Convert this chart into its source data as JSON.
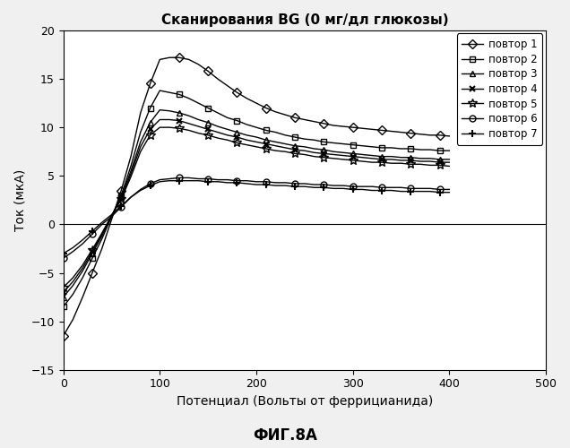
{
  "title": "Сканирования BG (0 мг/дл глюкозы)",
  "xlabel": "Потенциал (Вольты от феррицианида)",
  "ylabel": "Ток (мкА)",
  "fig_label": "ФИГ.8А",
  "xlim": [
    0,
    500
  ],
  "ylim": [
    -15,
    20
  ],
  "xticks": [
    0,
    100,
    200,
    300,
    400,
    500
  ],
  "yticks": [
    -15,
    -10,
    -5,
    0,
    5,
    10,
    15,
    20
  ],
  "legend_labels": [
    "повтор 1",
    "повтор 2",
    "повтор 3",
    "повтор 4",
    "повтор 5",
    "повтор 6",
    "повтор 7"
  ],
  "markers": [
    "D",
    "s",
    "^",
    "x",
    "*",
    "o",
    "+"
  ],
  "x_data": [
    0,
    10,
    20,
    30,
    40,
    50,
    60,
    70,
    80,
    90,
    100,
    110,
    120,
    130,
    140,
    150,
    160,
    170,
    180,
    190,
    200,
    210,
    220,
    230,
    240,
    250,
    260,
    270,
    280,
    290,
    300,
    310,
    320,
    330,
    340,
    350,
    360,
    370,
    380,
    390,
    400
  ],
  "curves": [
    [
      -11.5,
      -9.8,
      -7.5,
      -5.0,
      -2.5,
      0.5,
      3.5,
      7.0,
      11.5,
      14.5,
      17.0,
      17.2,
      17.2,
      17.0,
      16.5,
      15.8,
      15.0,
      14.3,
      13.6,
      13.0,
      12.5,
      12.0,
      11.6,
      11.3,
      11.0,
      10.8,
      10.6,
      10.4,
      10.2,
      10.1,
      10.0,
      9.9,
      9.8,
      9.7,
      9.6,
      9.5,
      9.4,
      9.3,
      9.2,
      9.2,
      9.1
    ],
    [
      -8.5,
      -7.2,
      -5.5,
      -3.5,
      -1.5,
      0.8,
      3.0,
      6.0,
      9.5,
      12.0,
      13.8,
      13.6,
      13.4,
      13.0,
      12.5,
      12.0,
      11.5,
      11.0,
      10.7,
      10.3,
      10.0,
      9.7,
      9.5,
      9.2,
      9.0,
      8.8,
      8.7,
      8.5,
      8.4,
      8.3,
      8.2,
      8.1,
      8.0,
      7.9,
      7.9,
      7.8,
      7.8,
      7.7,
      7.7,
      7.6,
      7.6
    ],
    [
      -7.5,
      -6.3,
      -4.8,
      -3.0,
      -1.2,
      0.8,
      2.8,
      5.5,
      8.5,
      10.5,
      11.8,
      11.7,
      11.5,
      11.2,
      10.8,
      10.5,
      10.1,
      9.8,
      9.5,
      9.2,
      9.0,
      8.7,
      8.5,
      8.3,
      8.1,
      8.0,
      7.8,
      7.7,
      7.5,
      7.4,
      7.3,
      7.2,
      7.1,
      7.0,
      7.0,
      6.9,
      6.9,
      6.8,
      6.8,
      6.7,
      6.7
    ],
    [
      -7.0,
      -5.9,
      -4.5,
      -2.8,
      -1.0,
      0.9,
      2.7,
      5.2,
      8.0,
      9.8,
      10.8,
      10.8,
      10.7,
      10.4,
      10.1,
      9.8,
      9.5,
      9.2,
      9.0,
      8.7,
      8.5,
      8.3,
      8.1,
      7.9,
      7.7,
      7.6,
      7.4,
      7.3,
      7.2,
      7.1,
      7.0,
      6.9,
      6.8,
      6.7,
      6.7,
      6.6,
      6.6,
      6.5,
      6.5,
      6.4,
      6.4
    ],
    [
      -6.5,
      -5.5,
      -4.2,
      -2.6,
      -0.9,
      0.9,
      2.6,
      4.9,
      7.5,
      9.2,
      10.0,
      10.0,
      9.9,
      9.7,
      9.4,
      9.2,
      8.9,
      8.7,
      8.4,
      8.2,
      8.0,
      7.8,
      7.6,
      7.5,
      7.3,
      7.2,
      7.0,
      6.9,
      6.8,
      6.7,
      6.6,
      6.5,
      6.4,
      6.4,
      6.3,
      6.3,
      6.2,
      6.2,
      6.1,
      6.1,
      6.0
    ],
    [
      -3.5,
      -2.8,
      -2.0,
      -1.0,
      0.0,
      0.8,
      1.8,
      2.8,
      3.6,
      4.2,
      4.6,
      4.7,
      4.8,
      4.8,
      4.7,
      4.7,
      4.6,
      4.6,
      4.5,
      4.5,
      4.4,
      4.4,
      4.3,
      4.3,
      4.2,
      4.2,
      4.1,
      4.1,
      4.0,
      4.0,
      3.9,
      3.9,
      3.9,
      3.8,
      3.8,
      3.8,
      3.7,
      3.7,
      3.7,
      3.6,
      3.6
    ],
    [
      -3.0,
      -2.4,
      -1.6,
      -0.7,
      0.2,
      1.0,
      1.9,
      2.8,
      3.5,
      4.0,
      4.4,
      4.5,
      4.5,
      4.5,
      4.5,
      4.4,
      4.4,
      4.3,
      4.3,
      4.2,
      4.1,
      4.1,
      4.0,
      4.0,
      3.9,
      3.9,
      3.8,
      3.8,
      3.7,
      3.7,
      3.6,
      3.6,
      3.5,
      3.5,
      3.5,
      3.4,
      3.4,
      3.4,
      3.4,
      3.3,
      3.3
    ]
  ],
  "background_color": "#f0f0f0",
  "plot_bg_color": "white",
  "title_fontsize": 11,
  "label_fontsize": 10,
  "tick_fontsize": 9,
  "legend_fontsize": 8.5
}
